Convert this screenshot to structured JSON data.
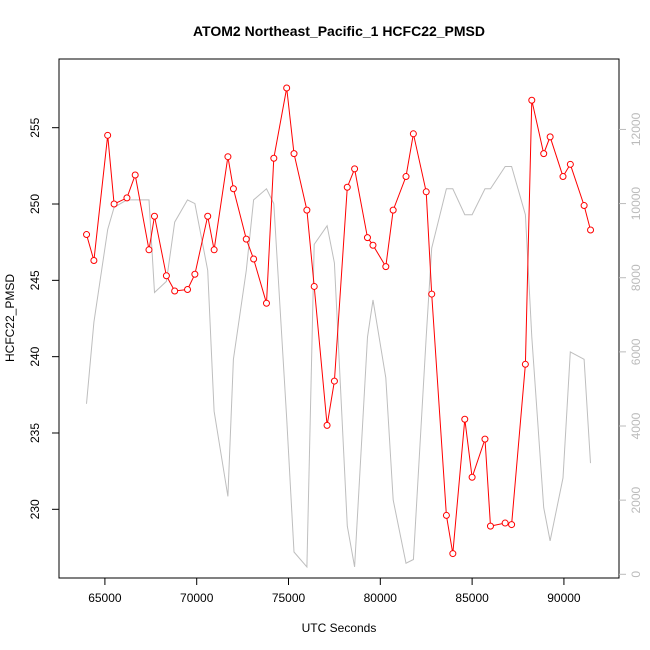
{
  "chart_data": {
    "type": "line",
    "title": "ATOM2 Northeast_Pacific_1 HCFC22_PMSD",
    "xlabel": "UTC Seconds",
    "ylabel": "HCFC22_PMSD",
    "xlim": [
      62500,
      93000
    ],
    "ylim": [
      225.5,
      259.5
    ],
    "y2lim": [
      -100,
      13900
    ],
    "xticks": [
      65000,
      70000,
      75000,
      80000,
      85000,
      90000
    ],
    "yticks": [
      230,
      235,
      240,
      245,
      250,
      255
    ],
    "y2ticks": [
      0,
      2000,
      4000,
      6000,
      8000,
      10000,
      12000
    ],
    "tick_labels": {
      "x": [
        "65000",
        "70000",
        "75000",
        "80000",
        "85000",
        "90000"
      ],
      "y": [
        "230",
        "235",
        "240",
        "245",
        "250",
        "255"
      ],
      "y2": [
        "0",
        "2000",
        "4000",
        "6000",
        "8000",
        "10000",
        "12000"
      ]
    },
    "series": [
      {
        "axis": "left",
        "color": "#ff0000",
        "marker": "open-circle",
        "x": [
          64000,
          64400,
          65150,
          65500,
          66200,
          66650,
          67400,
          67700,
          68350,
          68800,
          69500,
          69900,
          70600,
          70950,
          71700,
          72000,
          72700,
          73100,
          73800,
          74200,
          74900,
          75300,
          76000,
          76400,
          77100,
          77500,
          78200,
          78600,
          79300,
          79600,
          80300,
          80700,
          81400,
          81800,
          82500,
          82800,
          83600,
          83950,
          84600,
          85000,
          85700,
          86000,
          86800,
          87150,
          87900,
          88250,
          88900,
          89250,
          89950,
          90350,
          91100,
          91450
        ],
        "values": [
          248.0,
          246.3,
          254.5,
          250.0,
          250.4,
          251.9,
          247.0,
          249.2,
          245.3,
          244.3,
          244.4,
          245.4,
          249.2,
          247.0,
          253.1,
          251.0,
          247.7,
          246.4,
          243.5,
          253.0,
          257.6,
          253.3,
          249.6,
          244.6,
          235.5,
          238.4,
          251.1,
          252.3,
          247.8,
          247.3,
          245.9,
          249.6,
          251.8,
          254.6,
          250.8,
          244.1,
          229.6,
          227.1,
          235.9,
          232.1,
          234.6,
          228.9,
          229.1,
          229.0,
          239.5,
          256.8,
          253.3,
          254.4,
          251.8,
          252.6,
          249.9,
          248.3
        ]
      },
      {
        "axis": "right",
        "color": "#bebebe",
        "marker": "none",
        "x": [
          64000,
          64400,
          65150,
          65500,
          66200,
          66650,
          67400,
          67700,
          68350,
          68800,
          69500,
          69900,
          70600,
          70950,
          71700,
          72000,
          72700,
          73100,
          73800,
          74200,
          74900,
          75300,
          76000,
          76400,
          77100,
          77500,
          78200,
          78600,
          79300,
          79600,
          80300,
          80700,
          81400,
          81800,
          82500,
          82800,
          83600,
          83950,
          84600,
          85000,
          85700,
          86000,
          86800,
          87150,
          87900,
          88250,
          88900,
          89250,
          89950,
          90350,
          91100,
          91450
        ],
        "values": [
          4600,
          6800,
          9300,
          9900,
          10100,
          10100,
          10100,
          7600,
          7900,
          9500,
          10100,
          10000,
          8200,
          4400,
          2100,
          5800,
          8200,
          10100,
          10400,
          10000,
          4200,
          600,
          200,
          8900,
          9400,
          8400,
          1300,
          200,
          6400,
          7400,
          5300,
          2000,
          300,
          400,
          6400,
          8800,
          10400,
          10400,
          9700,
          9700,
          10400,
          10400,
          11000,
          11000,
          9700,
          6400,
          1800,
          900,
          2600,
          6000,
          5800,
          3000
        ]
      }
    ]
  }
}
